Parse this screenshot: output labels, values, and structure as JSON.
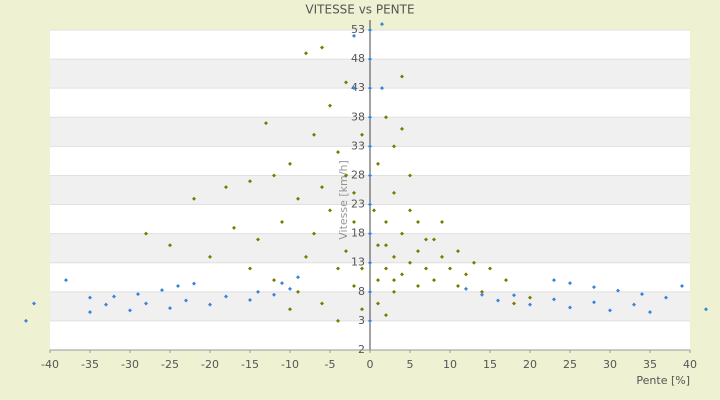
{
  "chart_data": {
    "type": "scatter",
    "title": "VITESSE vs PENTE",
    "xlabel": "Pente [%]",
    "ylabel": "Vitesse [km/h]",
    "xlim": [
      -40,
      40
    ],
    "xticks": [
      -40,
      -35,
      -30,
      -25,
      -20,
      -15,
      -10,
      -5,
      0,
      5,
      10,
      15,
      20,
      25,
      30,
      35,
      40
    ],
    "ylim": [
      -2,
      53
    ],
    "yticks": [
      -2,
      3,
      8,
      13,
      18,
      23,
      28,
      33,
      38,
      43,
      48,
      53
    ],
    "grid": true,
    "series": [
      {
        "color": "#7a7a00",
        "x": [
          -8,
          -6,
          -3,
          -5,
          -7,
          -13,
          -10,
          -15,
          -18,
          -22,
          -28,
          -25,
          -20,
          -15,
          -12,
          -9,
          -6,
          -4,
          -2,
          -3,
          -4,
          -1,
          -2,
          -5,
          -7,
          -8,
          -3,
          -1,
          1,
          2,
          3,
          4,
          5,
          6,
          7,
          8,
          9,
          10,
          11,
          12,
          13,
          14,
          15,
          17,
          20,
          2,
          3,
          4,
          5,
          7,
          9,
          1,
          3,
          5,
          2,
          4,
          1,
          0.5,
          6,
          3,
          -1,
          1,
          8,
          11,
          -6,
          -11,
          -14,
          -17,
          -9,
          -12,
          4,
          2,
          -10,
          18,
          -4,
          -2,
          6,
          2,
          3
        ],
        "values": [
          49,
          50,
          44,
          40,
          35,
          37,
          30,
          27,
          26,
          24,
          18,
          16,
          14,
          12,
          10,
          8,
          6,
          3,
          20,
          28,
          32,
          35,
          25,
          22,
          18,
          14,
          15,
          12,
          10,
          12,
          14,
          11,
          13,
          15,
          12,
          10,
          14,
          12,
          9,
          11,
          13,
          8,
          12,
          10,
          7,
          20,
          25,
          18,
          22,
          17,
          20,
          30,
          33,
          28,
          38,
          36,
          16,
          22,
          9,
          8,
          5,
          6,
          17,
          15,
          26,
          20,
          17,
          19,
          24,
          28,
          45,
          4,
          5,
          6,
          12,
          9,
          20,
          16,
          10
        ]
      },
      {
        "color": "#3a85d8",
        "x": [
          0,
          0,
          0,
          0,
          0,
          0,
          0,
          0,
          0,
          0,
          0,
          1.5,
          1.5,
          -2,
          -2,
          -35,
          -32,
          -29,
          -26,
          -24,
          -22,
          -35,
          -30,
          -25,
          -20,
          -15,
          -12,
          -10,
          -33,
          -28,
          -23,
          -18,
          -14,
          -11,
          -9,
          35,
          30,
          25,
          20,
          16,
          14,
          12,
          33,
          28,
          23,
          18,
          23,
          25,
          28,
          31,
          34,
          37,
          -42,
          -43,
          42,
          -38,
          39
        ],
        "values": [
          3,
          8,
          13,
          18,
          23,
          28,
          33,
          38,
          43,
          48,
          53,
          54,
          43,
          52,
          43,
          7,
          7.2,
          7.6,
          8.3,
          9,
          9.4,
          4.5,
          4.8,
          5.2,
          5.8,
          6.6,
          7.5,
          8.5,
          5.8,
          6,
          6.5,
          7.2,
          8,
          9.5,
          10.5,
          4.5,
          4.8,
          5.3,
          5.8,
          6.5,
          7.5,
          8.5,
          5.8,
          6.2,
          6.7,
          7.4,
          10,
          9.5,
          8.8,
          8.2,
          7.6,
          7,
          6,
          3,
          5,
          10,
          9
        ]
      }
    ]
  }
}
